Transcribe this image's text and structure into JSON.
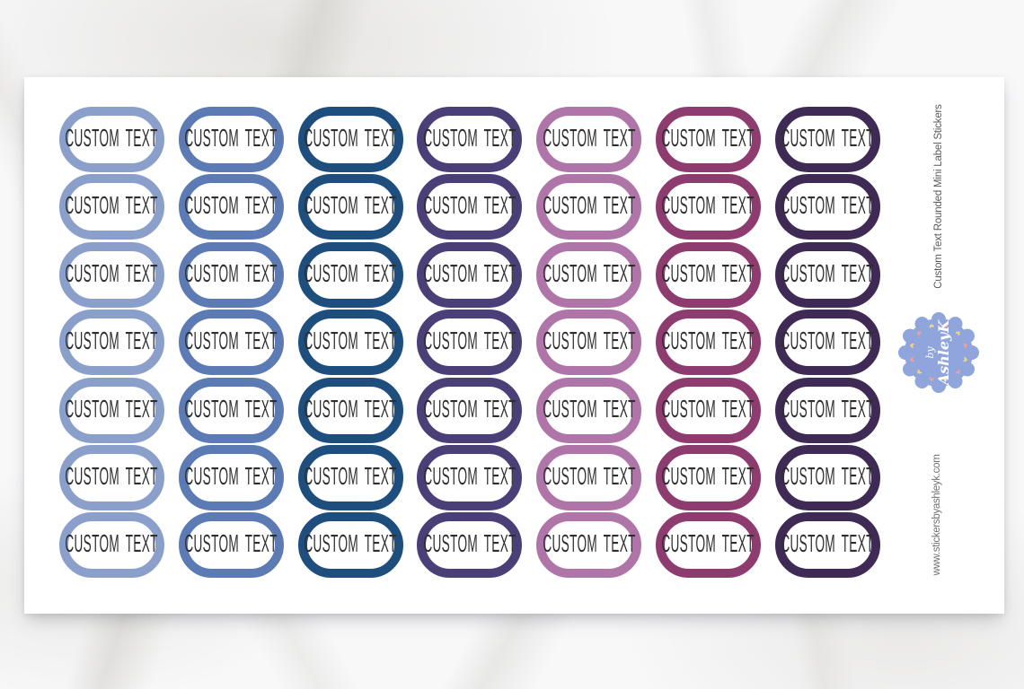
{
  "sheet": {
    "sticker_label": "CUSTOM TEXT",
    "rows": 7,
    "text_color": "#2e2e2e",
    "columns": [
      {
        "name": "periwinkle-blue",
        "color": "#8AA0CB"
      },
      {
        "name": "medium-blue",
        "color": "#5C7BB5"
      },
      {
        "name": "navy-blue",
        "color": "#1E4E7D"
      },
      {
        "name": "indigo-purple",
        "color": "#4B3F77"
      },
      {
        "name": "orchid-mauve",
        "color": "#B075A8"
      },
      {
        "name": "plum",
        "color": "#8E3C70"
      },
      {
        "name": "dark-purple",
        "color": "#3E2A55"
      }
    ]
  },
  "side": {
    "product_title": "Custom Text Rounded Mini Label Stickers",
    "website": "www.stickersbyashleyk.com"
  },
  "badge": {
    "brand_prefix": "by",
    "brand_name": "AshleyK",
    "background": "#8FA5DC",
    "heart_color_yellow": "#F5D77E",
    "heart_color_pink": "#F2A09F"
  }
}
